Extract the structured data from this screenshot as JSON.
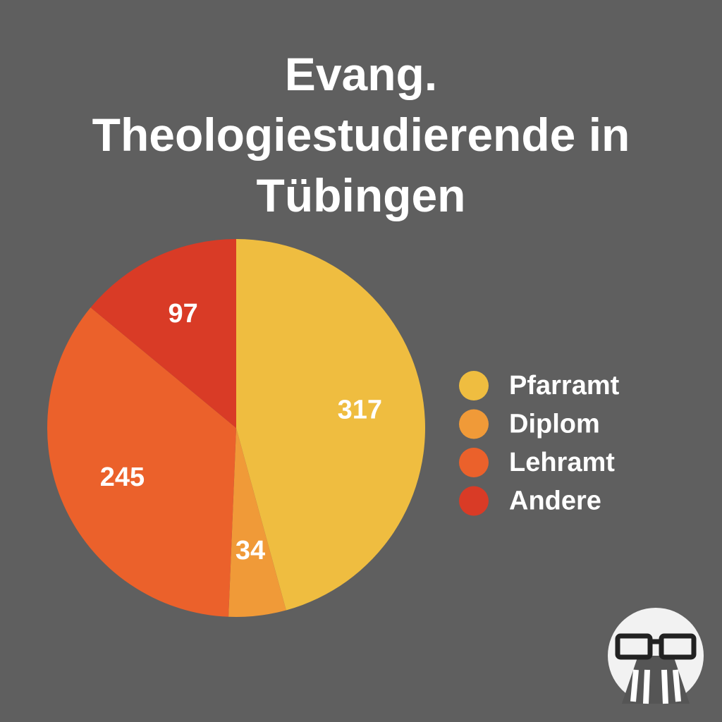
{
  "chart_data": {
    "type": "pie",
    "title": "Evang. Theologiestudierende in Tübingen",
    "categories": [
      "Pfarramt",
      "Diplom",
      "Lehramt",
      "Andere"
    ],
    "values": [
      317,
      34,
      245,
      97
    ],
    "colors": [
      "#efbd40",
      "#f09a38",
      "#eb612b",
      "#d93b26"
    ]
  }
}
